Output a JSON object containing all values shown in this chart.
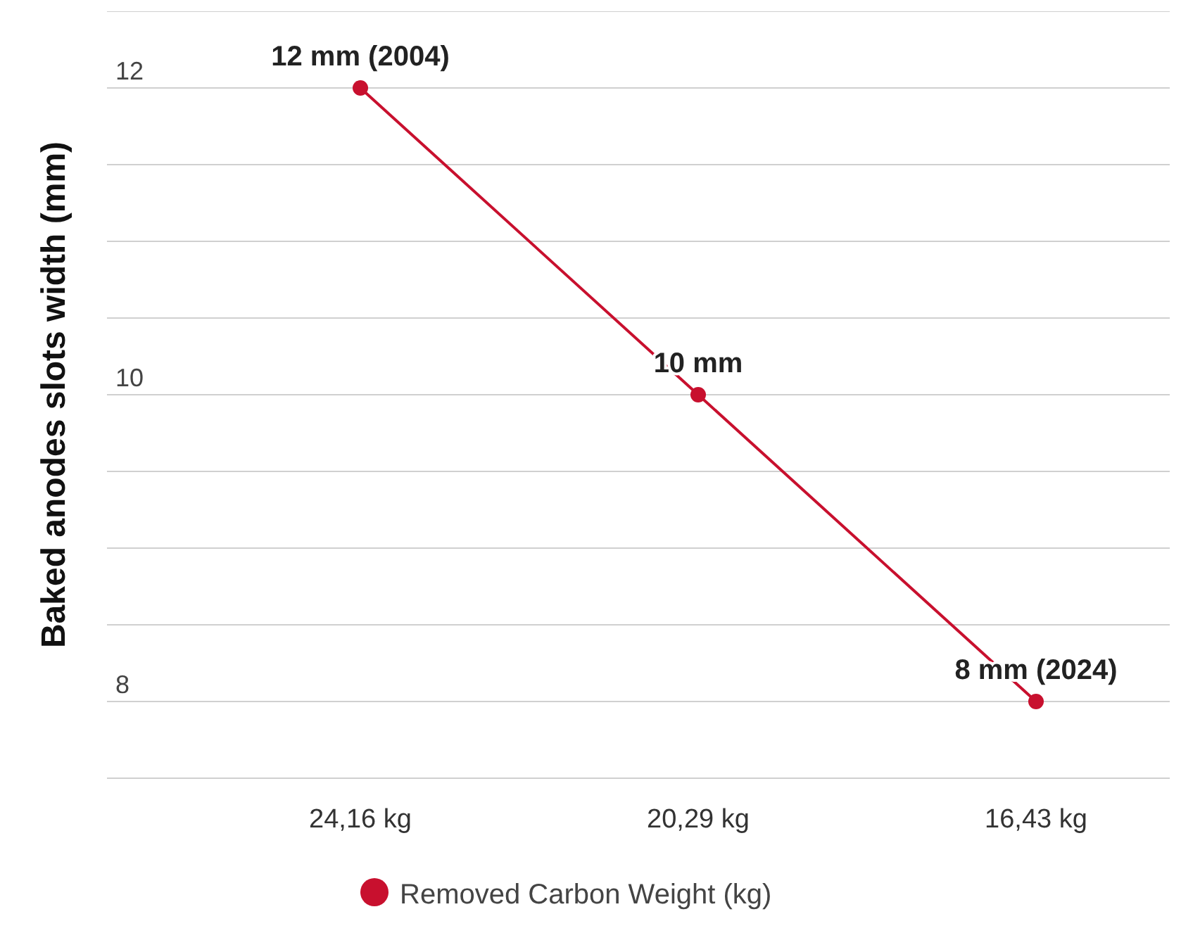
{
  "chart_data": {
    "type": "line",
    "ylabel": "Baked anodes slots width (mm)",
    "categories": [
      "24,16 kg",
      "20,29 kg",
      "16,43 kg"
    ],
    "series": [
      {
        "name": "Removed Carbon Weight (kg)",
        "color": "#c8102e",
        "values": [
          12,
          10,
          8
        ],
        "value_labels": [
          "12 mm (2004)",
          "10 mm",
          "8 mm (2024)"
        ]
      }
    ],
    "ylim": [
      7.5,
      12.5
    ],
    "yticks": [
      {
        "value": 7.5,
        "label": null
      },
      8,
      {
        "value": 8.5,
        "label": null
      },
      {
        "value": 9,
        "label": null
      },
      {
        "value": 9.5,
        "label": null
      },
      10,
      {
        "value": 10.5,
        "label": null
      },
      {
        "value": 11,
        "label": null
      },
      {
        "value": 11.5,
        "label": null
      },
      12,
      {
        "value": 12.5,
        "label": null
      }
    ],
    "grid": "y",
    "legend": "bottom",
    "marker": "circle",
    "line_style": "solid"
  }
}
